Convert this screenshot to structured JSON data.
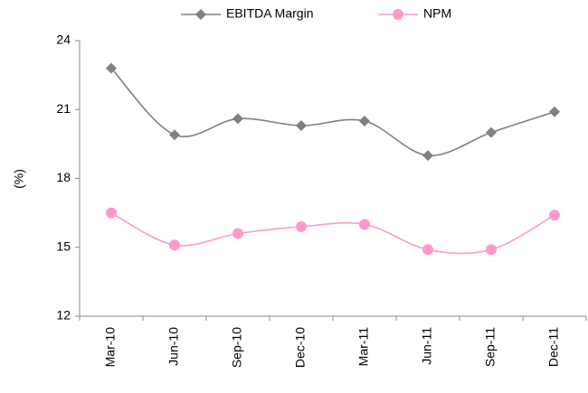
{
  "chart_data": {
    "type": "line",
    "y_label": "(%)",
    "categories": [
      "Mar-10",
      "Jun-10",
      "Sep-10",
      "Dec-10",
      "Mar-11",
      "Jun-11",
      "Sep-11",
      "Dec-11"
    ],
    "series": [
      {
        "name": "EBITDA Margin",
        "color": "#808080",
        "marker": "diamond",
        "values": [
          22.8,
          19.9,
          20.6,
          20.3,
          20.5,
          19.0,
          20.0,
          20.9
        ]
      },
      {
        "name": "NPM",
        "color": "#ff99cc",
        "marker": "circle",
        "values": [
          16.5,
          15.1,
          15.6,
          15.9,
          16.0,
          14.9,
          14.9,
          16.4
        ]
      }
    ],
    "ylim": [
      12,
      24
    ],
    "yticks": [
      12,
      15,
      18,
      21,
      24
    ],
    "smooth": true,
    "legend": "top"
  }
}
